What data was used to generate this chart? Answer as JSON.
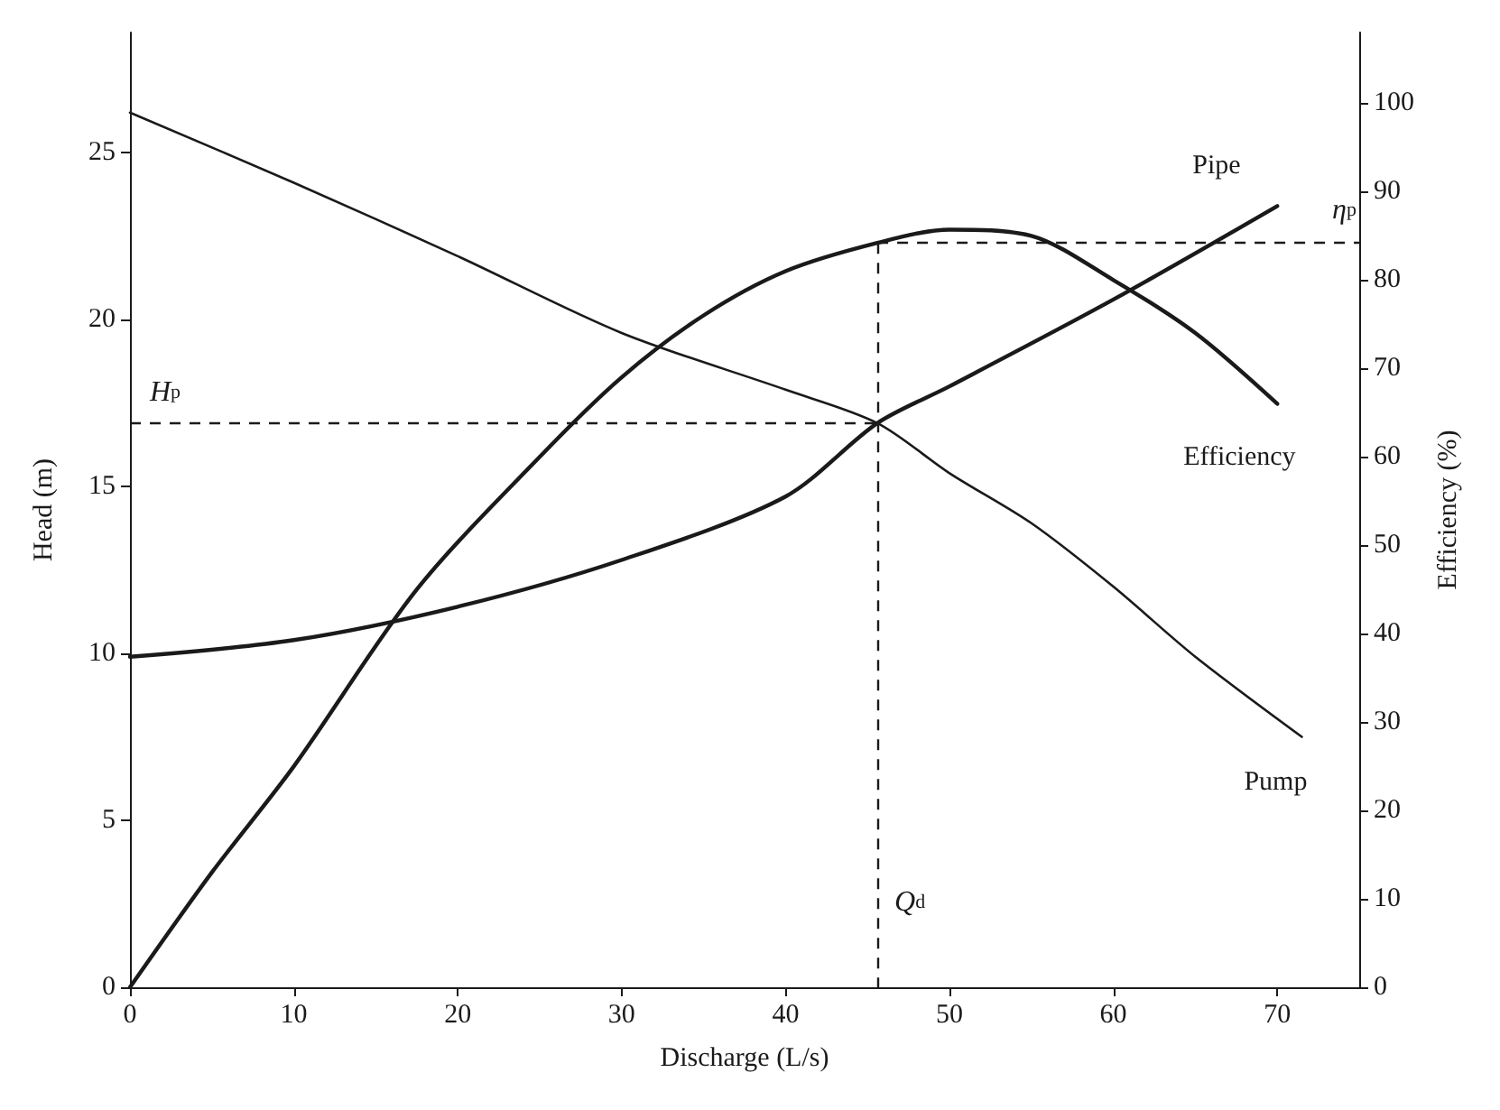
{
  "chart_data": {
    "type": "line",
    "xlabel": "Discharge (L/s)",
    "ylabel": "Head (m)",
    "y2label": "Efficiency (%)",
    "xlim": [
      0,
      75
    ],
    "xticks": [
      0,
      10,
      20,
      30,
      40,
      50,
      60,
      70
    ],
    "ylim": [
      0,
      28.6
    ],
    "yticks": [
      0,
      5,
      10,
      15,
      20,
      25
    ],
    "y2lim": [
      0,
      108
    ],
    "y2ticks": [
      0,
      10,
      20,
      30,
      40,
      50,
      60,
      70,
      80,
      90,
      100
    ],
    "grid": false,
    "legend": false,
    "marker": "none",
    "line_style": "solid",
    "series": [
      {
        "name": "Pump",
        "color": "#1a1a1a",
        "x": [
          0,
          10,
          20,
          30,
          40,
          45.6,
          50,
          55,
          60,
          65,
          71.5
        ],
        "values": [
          26.2,
          24.1,
          21.9,
          19.6,
          17.9,
          16.9,
          15.4,
          13.9,
          12.0,
          9.9,
          7.5
        ]
      },
      {
        "name": "Pipe",
        "color": "#1a1a1a",
        "x": [
          0,
          10,
          20,
          30,
          40,
          45.6,
          50,
          60,
          70
        ],
        "values": [
          9.9,
          10.4,
          11.4,
          12.8,
          14.7,
          16.9,
          18.0,
          20.6,
          23.4
        ]
      },
      {
        "name": "Efficiency",
        "color": "#1a1a1a",
        "axis": "y2",
        "x": [
          0,
          5,
          10,
          17.5,
          25,
          30,
          35,
          40,
          45.6,
          50,
          55,
          60,
          65,
          70
        ],
        "values": [
          0,
          13,
          25,
          45,
          60,
          69,
          76,
          81,
          84.2,
          85.7,
          85,
          80,
          74,
          66
        ]
      }
    ],
    "ref_lines": [
      {
        "axis": "x",
        "value": 45.6,
        "label": "Q$_{d}$",
        "line_style": "dashed"
      },
      {
        "axis": "y",
        "value": 16.9,
        "label": "H$_{p}$",
        "line_style": "dashed"
      },
      {
        "axis": "y2",
        "value": 84.2,
        "label": "η$_{p}$",
        "line_style": "dashed"
      }
    ]
  }
}
